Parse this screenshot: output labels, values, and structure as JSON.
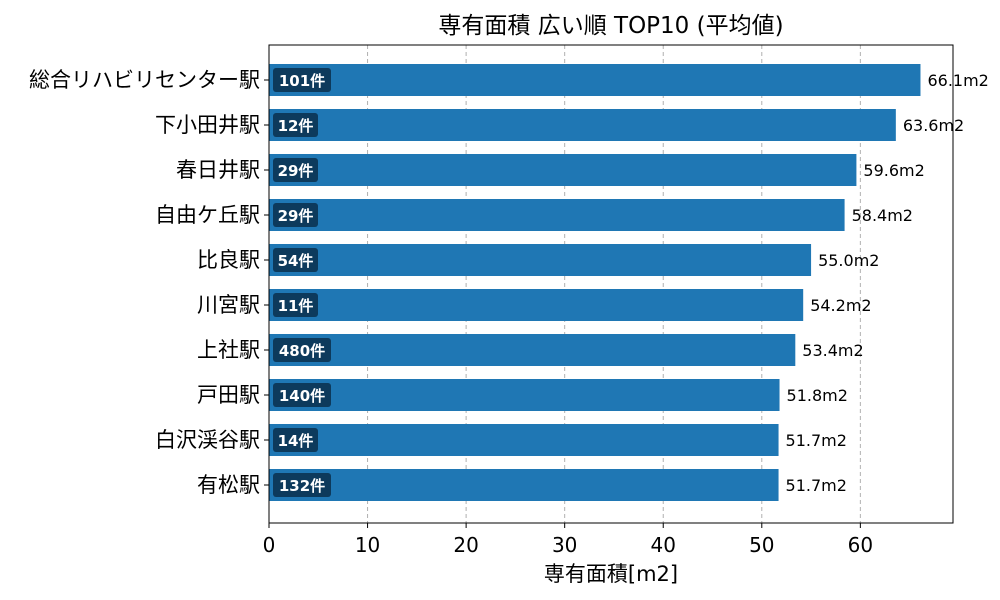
{
  "chart_data": {
    "type": "bar",
    "orientation": "horizontal",
    "title": "専有面積 広い順 TOP10 (平均値)",
    "xlabel": "専有面積[m2]",
    "ylabel": "",
    "xlim": [
      0,
      69.4
    ],
    "xticks": [
      0,
      10,
      20,
      30,
      40,
      50,
      60
    ],
    "grid": "x-dashed",
    "bar_color": "#1f77b4",
    "badge_color": "#0d3a5c",
    "value_suffix": "m2",
    "categories": [
      "総合リハビリセンター駅",
      "下小田井駅",
      "春日井駅",
      "自由ケ丘駅",
      "比良駅",
      "川宮駅",
      "上社駅",
      "戸田駅",
      "白沢渓谷駅",
      "有松駅"
    ],
    "values": [
      66.1,
      63.6,
      59.6,
      58.4,
      55.0,
      54.2,
      53.4,
      51.8,
      51.7,
      51.7
    ],
    "value_labels": [
      "66.1m2",
      "63.6m2",
      "59.6m2",
      "58.4m2",
      "55.0m2",
      "54.2m2",
      "53.4m2",
      "51.8m2",
      "51.7m2",
      "51.7m2"
    ],
    "counts": [
      "101件",
      "12件",
      "29件",
      "29件",
      "54件",
      "11件",
      "480件",
      "140件",
      "14件",
      "132件"
    ]
  }
}
